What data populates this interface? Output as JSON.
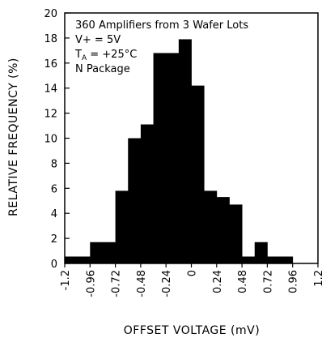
{
  "chart_data": {
    "type": "bar",
    "xlabel": "OFFSET VOLTAGE (mV)",
    "ylabel": "RELATIVE FREQUENCY (%)",
    "xlim": [
      -1.2,
      1.2
    ],
    "ylim": [
      0,
      20
    ],
    "y_ticks": [
      0,
      2,
      4,
      6,
      8,
      10,
      12,
      14,
      16,
      18,
      20
    ],
    "x_ticks": [
      -1.2,
      -0.96,
      -0.72,
      -0.48,
      -0.24,
      0,
      0.24,
      0.48,
      0.72,
      0.96,
      1.2
    ],
    "y_tick_labels": [
      "0",
      "2",
      "4",
      "6",
      "8",
      "10",
      "12",
      "14",
      "16",
      "18",
      "20"
    ],
    "x_tick_labels": [
      "-1.2",
      "-0.96",
      "-0.72",
      "-0.48",
      "-0.24",
      "0",
      "0.24",
      "0.48",
      "0.72",
      "0.96",
      "1.2"
    ],
    "bin_edges": [
      -1.2,
      -1.08,
      -0.96,
      -0.84,
      -0.72,
      -0.6,
      -0.48,
      -0.36,
      -0.24,
      -0.12,
      0,
      0.12,
      0.24,
      0.36,
      0.48,
      0.6,
      0.72,
      0.84,
      0.96,
      1.08,
      1.2
    ],
    "values": [
      0.55,
      0.55,
      1.7,
      1.7,
      5.8,
      10.0,
      11.1,
      16.8,
      16.8,
      17.9,
      14.2,
      5.8,
      5.3,
      4.7,
      0.55,
      1.7,
      0.55,
      0.55,
      0,
      0
    ],
    "bar_color": "#000000",
    "annotations": {
      "line1": "360 Amplifiers from 3 Wafer Lots",
      "line2": "V+ = 5V",
      "line3_main": "T",
      "line3_sub": "A",
      "line3_rest": " = +25°C",
      "line4": "N Package"
    }
  }
}
